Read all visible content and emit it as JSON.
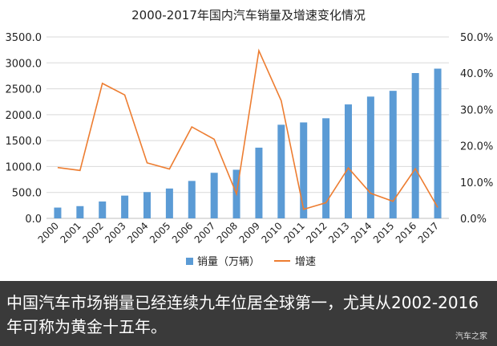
{
  "chart_data": {
    "type": "bar+line",
    "title": "2000-2017年国内汽车销量及增速变化情况",
    "categories": [
      "2000",
      "2001",
      "2002",
      "2003",
      "2004",
      "2005",
      "2006",
      "2007",
      "2008",
      "2009",
      "2010",
      "2011",
      "2012",
      "2013",
      "2014",
      "2015",
      "2016",
      "2017"
    ],
    "series": [
      {
        "name": "销量（万辆）",
        "type": "bar",
        "axis": "left",
        "color": "#5b9bd5",
        "values": [
          208,
          236,
          325,
          439,
          507,
          576,
          722,
          879,
          938,
          1364,
          1806,
          1851,
          1931,
          2198,
          2349,
          2460,
          2803,
          2888
        ]
      },
      {
        "name": "增速",
        "type": "line",
        "axis": "right",
        "color": "#ed7d31",
        "values": [
          14.0,
          13.2,
          37.2,
          34.0,
          15.3,
          13.6,
          25.2,
          21.8,
          6.7,
          46.2,
          32.4,
          2.5,
          4.3,
          13.9,
          6.9,
          4.7,
          13.7,
          3.0
        ]
      }
    ],
    "y_left": {
      "ylim": [
        0,
        3500
      ],
      "ticks": [
        "0.0",
        "500.0",
        "1000.0",
        "1500.0",
        "2000.0",
        "2500.0",
        "3000.0",
        "3500.0"
      ]
    },
    "y_right": {
      "ylim": [
        0,
        50
      ],
      "ticks": [
        "0.0%",
        "10.0%",
        "20.0%",
        "30.0%",
        "40.0%",
        "50.0%"
      ]
    },
    "legend": {
      "position": "bottom",
      "bar_label": "销量（万辆）",
      "line_label": "增速"
    }
  },
  "caption": "中国汽车市场销量已经连续九年位居全球第一，尤其从2002-2016年可称为黄金十五年。",
  "watermark": "汽车之家"
}
